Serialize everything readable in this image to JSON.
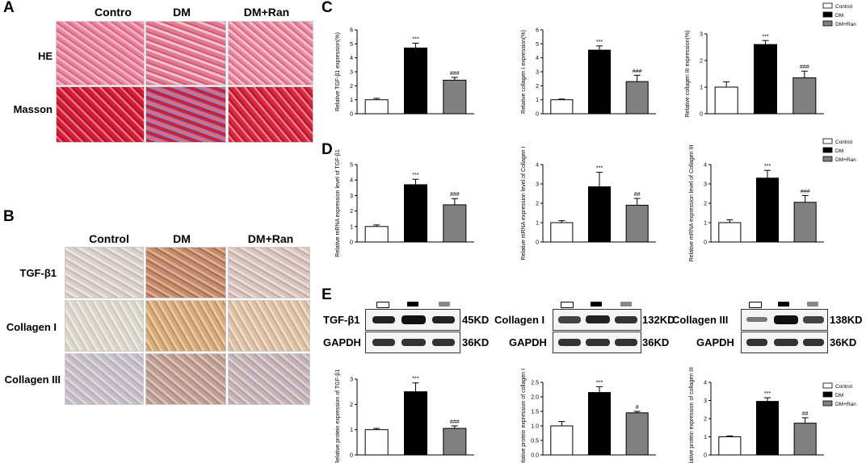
{
  "panels": {
    "a": "A",
    "b": "B",
    "c": "C",
    "d": "D",
    "e": "E"
  },
  "panelA": {
    "columns": [
      "Contro",
      "DM",
      "DM+Ran"
    ],
    "rows": [
      "HE",
      "Masson"
    ]
  },
  "panelB": {
    "columns": [
      "Control",
      "DM",
      "DM+Ran"
    ],
    "rows": [
      "TGF-β1",
      "Collagen I",
      "Collagen III"
    ]
  },
  "legend": {
    "items": [
      "Control",
      "DM",
      "DM+Ran"
    ],
    "colors": [
      "#ffffff",
      "#000000",
      "#808080"
    ]
  },
  "blots": {
    "groups": [
      {
        "target": "TGF-β1",
        "target_kd": "45KD",
        "ref": "GAPDH",
        "ref_kd": "36KD"
      },
      {
        "target": "Collagen I",
        "target_kd": "132KD",
        "ref": "GAPDH",
        "ref_kd": "36KD"
      },
      {
        "target": "Collagen III",
        "target_kd": "138KD",
        "ref": "GAPDH",
        "ref_kd": "36KD"
      }
    ]
  },
  "chart_data": [
    {
      "type": "bar",
      "panel": "C",
      "categories": [
        "Control",
        "DM",
        "DM+Ran"
      ],
      "values": [
        1.0,
        4.7,
        2.4
      ],
      "errors": [
        0.1,
        0.35,
        0.2
      ],
      "marks": [
        "",
        "***",
        "###"
      ],
      "ylabel": "Relative TGF-β1 expression(%)",
      "ylim": [
        0,
        6
      ],
      "yticks": [
        0,
        1,
        2,
        3,
        4,
        5,
        6
      ]
    },
    {
      "type": "bar",
      "panel": "C",
      "categories": [
        "Control",
        "DM",
        "DM+Ran"
      ],
      "values": [
        1.0,
        4.55,
        2.3
      ],
      "errors": [
        0.05,
        0.3,
        0.45
      ],
      "marks": [
        "",
        "***",
        "###"
      ],
      "ylabel": "Relative collagen I expression(%)",
      "ylim": [
        0,
        6
      ],
      "yticks": [
        0,
        1,
        2,
        3,
        4,
        5,
        6
      ]
    },
    {
      "type": "bar",
      "panel": "C",
      "categories": [
        "Control",
        "DM",
        "DM+Ran"
      ],
      "values": [
        1.0,
        2.6,
        1.35
      ],
      "errors": [
        0.2,
        0.15,
        0.25
      ],
      "marks": [
        "",
        "***",
        "###"
      ],
      "ylabel": "Relative collagen III expression(%)",
      "ylim": [
        0,
        3
      ],
      "yticks": [
        0,
        1,
        2,
        3
      ]
    },
    {
      "type": "bar",
      "panel": "D",
      "categories": [
        "Control",
        "DM",
        "DM+Ran"
      ],
      "values": [
        1.0,
        3.7,
        2.4
      ],
      "errors": [
        0.1,
        0.35,
        0.4
      ],
      "marks": [
        "",
        "***",
        "###"
      ],
      "ylabel": "Relative mRNA expression level of TGF-β1",
      "ylim": [
        0,
        5
      ],
      "yticks": [
        0,
        1,
        2,
        3,
        4,
        5
      ]
    },
    {
      "type": "bar",
      "panel": "D",
      "categories": [
        "Control",
        "DM",
        "DM+Ran"
      ],
      "values": [
        1.0,
        2.85,
        1.9
      ],
      "errors": [
        0.1,
        0.75,
        0.35
      ],
      "marks": [
        "",
        "***",
        "##"
      ],
      "ylabel": "Relative mRNA expression level of Collagen I",
      "ylim": [
        0,
        4
      ],
      "yticks": [
        0,
        1,
        2,
        3,
        4
      ]
    },
    {
      "type": "bar",
      "panel": "D",
      "categories": [
        "Control",
        "DM",
        "DM+Ran"
      ],
      "values": [
        1.0,
        3.3,
        2.05
      ],
      "errors": [
        0.15,
        0.4,
        0.35
      ],
      "marks": [
        "",
        "***",
        "###"
      ],
      "ylabel": "Relative mRNA expression level of Collagen III",
      "ylim": [
        0,
        4
      ],
      "yticks": [
        0,
        1,
        2,
        3,
        4
      ]
    },
    {
      "type": "bar",
      "panel": "E",
      "categories": [
        "Control",
        "DM",
        "DM+Ran"
      ],
      "values": [
        1.0,
        2.5,
        1.05
      ],
      "errors": [
        0.05,
        0.35,
        0.1
      ],
      "marks": [
        "",
        "***",
        "###"
      ],
      "ylabel": "Relative protein expression of TGF-β1",
      "ylim": [
        0,
        3
      ],
      "yticks": [
        0,
        1,
        2,
        3
      ]
    },
    {
      "type": "bar",
      "panel": "E",
      "categories": [
        "Control",
        "DM",
        "DM+Ran"
      ],
      "values": [
        1.0,
        2.15,
        1.45
      ],
      "errors": [
        0.15,
        0.2,
        0.05
      ],
      "marks": [
        "",
        "***",
        "#"
      ],
      "ylabel": "Relative protein expression of collagen I",
      "ylim": [
        0,
        2.5
      ],
      "yticks": [
        0,
        0.5,
        1.0,
        1.5,
        2.0,
        2.5
      ]
    },
    {
      "type": "bar",
      "panel": "E",
      "categories": [
        "Control",
        "DM",
        "DM+Ran"
      ],
      "values": [
        1.0,
        2.95,
        1.75
      ],
      "errors": [
        0.05,
        0.2,
        0.3
      ],
      "marks": [
        "",
        "***",
        "##"
      ],
      "ylabel": "Relative protein expression of collagen III",
      "ylim": [
        0,
        4
      ],
      "yticks": [
        0,
        1,
        2,
        3,
        4
      ]
    }
  ]
}
